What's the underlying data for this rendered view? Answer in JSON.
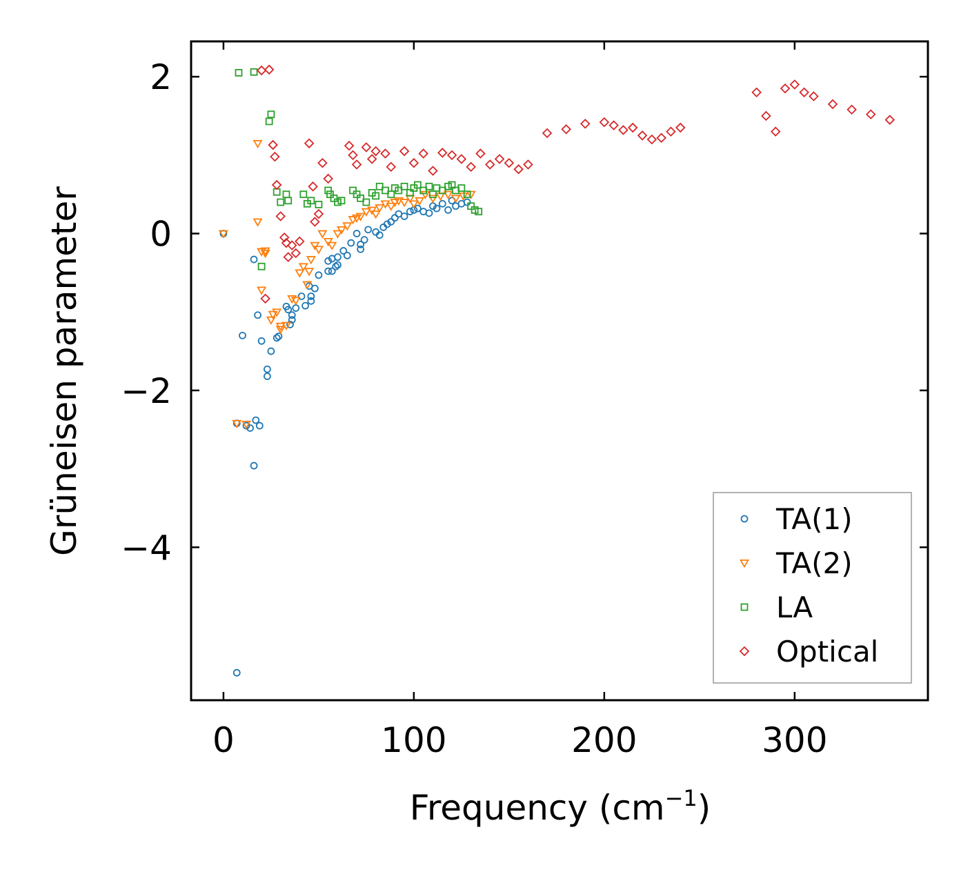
{
  "chart_data": {
    "type": "scatter",
    "title": "",
    "xlabel": "Frequency (cm",
    "xlabel_sup": "−1",
    "xlabel_suffix": ")",
    "ylabel": "Grüneisen parameter",
    "xlim": [
      -17,
      370
    ],
    "ylim": [
      -5.95,
      2.45
    ],
    "xticks": [
      0,
      100,
      200,
      300
    ],
    "xtick_labels": [
      "0",
      "100",
      "200",
      "300"
    ],
    "yticks": [
      2,
      0,
      -2,
      -4
    ],
    "ytick_labels": [
      "2",
      "0",
      "−2",
      "−4"
    ],
    "legend_position": "lower-right",
    "series": [
      {
        "name": "TA(1)",
        "marker": "circle",
        "color": "#1f77b4",
        "x": [
          0,
          7,
          7,
          10,
          12,
          14,
          16,
          16,
          17,
          18,
          19,
          20,
          23,
          23,
          25,
          28,
          29,
          33,
          34,
          35,
          36,
          36,
          38,
          41,
          43,
          45,
          46,
          46,
          48,
          50,
          55,
          55,
          57,
          57,
          59,
          60,
          60,
          63,
          65,
          67,
          70,
          72,
          72,
          74,
          76,
          80,
          82,
          84,
          86,
          88,
          90,
          92,
          95,
          98,
          100,
          102,
          105,
          108,
          110,
          112,
          115,
          118,
          120,
          122,
          125,
          128
        ],
        "y": [
          0,
          -5.6,
          -2.42,
          -1.3,
          -2.45,
          -2.48,
          -0.33,
          -2.96,
          -2.38,
          -1.04,
          -2.45,
          -1.37,
          -1.73,
          -1.82,
          -1.5,
          -1.33,
          -1.31,
          -0.93,
          -0.97,
          -1.16,
          -1.04,
          -1.1,
          -0.95,
          -0.8,
          -0.92,
          -0.67,
          -0.86,
          -0.8,
          -0.7,
          -0.53,
          -0.35,
          -0.48,
          -0.48,
          -0.32,
          -0.42,
          -0.4,
          -0.3,
          -0.22,
          -0.28,
          -0.12,
          0,
          -0.2,
          -0.14,
          -0.08,
          0.05,
          0.02,
          -0.02,
          0.08,
          0.12,
          0.15,
          0.2,
          0.25,
          0.22,
          0.28,
          0.3,
          0.32,
          0.28,
          0.26,
          0.35,
          0.32,
          0.38,
          0.3,
          0.42,
          0.35,
          0.38,
          0.4
        ]
      },
      {
        "name": "TA(2)",
        "marker": "triangle-down",
        "color": "#ff7f0e",
        "x": [
          0,
          7,
          12,
          18,
          18,
          20,
          20,
          22,
          22,
          25,
          26,
          28,
          30,
          30,
          33,
          36,
          38,
          40,
          42,
          44,
          45,
          46,
          48,
          50,
          52,
          55,
          57,
          60,
          62,
          65,
          68,
          70,
          72,
          75,
          78,
          80,
          82,
          85,
          88,
          90,
          92,
          95,
          98,
          100,
          103,
          106,
          110,
          114,
          118,
          122,
          126,
          130
        ],
        "y": [
          0,
          -2.42,
          -2.43,
          1.15,
          0.15,
          -0.23,
          -0.72,
          -0.22,
          -0.25,
          -1.1,
          -1.03,
          -1.0,
          -1.22,
          -1.18,
          -1.17,
          -0.83,
          -0.85,
          -0.5,
          -0.42,
          -0.65,
          -0.48,
          -0.33,
          -0.15,
          -0.2,
          0.0,
          -0.1,
          -0.15,
          0.0,
          0.05,
          0.1,
          0.18,
          0.2,
          0.22,
          0.28,
          0.3,
          0.25,
          0.33,
          0.38,
          0.35,
          0.4,
          0.42,
          0.4,
          0.45,
          0.38,
          0.42,
          0.5,
          0.45,
          0.48,
          0.5,
          0.45,
          0.48,
          0.5
        ]
      },
      {
        "name": "LA",
        "marker": "square",
        "color": "#2ca02c",
        "x": [
          8,
          16,
          20,
          24,
          25,
          28,
          30,
          33,
          34,
          42,
          44,
          46,
          50,
          55,
          56,
          58,
          60,
          62,
          68,
          70,
          72,
          75,
          78,
          80,
          82,
          85,
          88,
          90,
          92,
          95,
          98,
          100,
          102,
          105,
          108,
          110,
          112,
          115,
          118,
          120,
          122,
          125,
          128,
          130,
          132,
          134
        ],
        "y": [
          2.05,
          2.06,
          -0.42,
          1.43,
          1.52,
          0.53,
          0.4,
          0.5,
          0.42,
          0.5,
          0.38,
          0.42,
          0.37,
          0.55,
          0.5,
          0.45,
          0.4,
          0.42,
          0.55,
          0.5,
          0.45,
          0.4,
          0.52,
          0.48,
          0.6,
          0.55,
          0.5,
          0.58,
          0.55,
          0.6,
          0.52,
          0.58,
          0.62,
          0.55,
          0.6,
          0.5,
          0.58,
          0.55,
          0.6,
          0.62,
          0.55,
          0.58,
          0.5,
          0.35,
          0.3,
          0.28
        ]
      },
      {
        "name": "Optical",
        "marker": "diamond",
        "color": "#d62728",
        "x": [
          20,
          24,
          26,
          22,
          27,
          28,
          30,
          32,
          33,
          34,
          36,
          38,
          40,
          45,
          47,
          48,
          50,
          52,
          55,
          66,
          68,
          70,
          75,
          78,
          80,
          85,
          88,
          95,
          100,
          105,
          110,
          115,
          120,
          125,
          130,
          135,
          140,
          145,
          150,
          155,
          160,
          170,
          180,
          190,
          200,
          205,
          210,
          215,
          220,
          225,
          230,
          235,
          240,
          280,
          285,
          290,
          295,
          300,
          305,
          310,
          320,
          330,
          340,
          350
        ],
        "y": [
          2.08,
          2.09,
          1.13,
          -0.83,
          0.98,
          0.62,
          0.22,
          -0.05,
          -0.12,
          -0.3,
          -0.15,
          -0.25,
          -0.1,
          1.15,
          0.6,
          0.15,
          0.25,
          0.9,
          0.7,
          1.12,
          1.0,
          0.88,
          1.1,
          0.95,
          1.05,
          1.02,
          0.85,
          1.05,
          0.9,
          1.02,
          0.8,
          1.03,
          1.0,
          0.95,
          0.85,
          1.02,
          0.88,
          0.95,
          0.9,
          0.82,
          0.88,
          1.28,
          1.33,
          1.4,
          1.42,
          1.38,
          1.32,
          1.35,
          1.25,
          1.2,
          1.22,
          1.3,
          1.35,
          1.8,
          1.5,
          1.3,
          1.85,
          1.9,
          1.8,
          1.75,
          1.65,
          1.58,
          1.52,
          1.45
        ]
      }
    ]
  }
}
